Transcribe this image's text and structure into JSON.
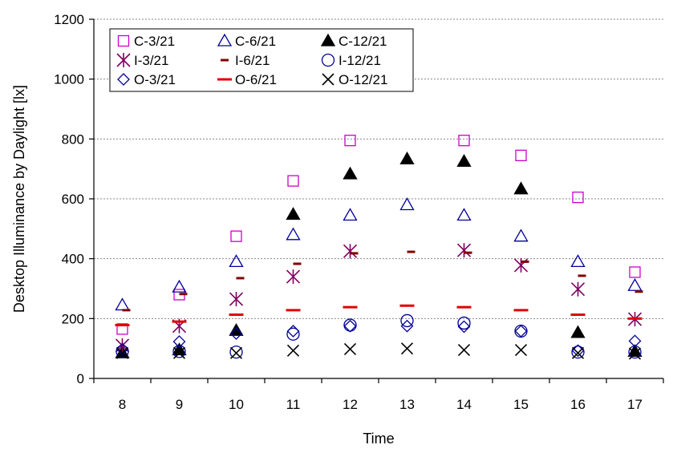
{
  "chart_data": {
    "type": "scatter",
    "xlabel": "Time",
    "ylabel": "Desktop Illuminance by Daylight [lx]",
    "x": [
      8,
      9,
      10,
      11,
      12,
      13,
      14,
      15,
      16,
      17
    ],
    "ylim": [
      0,
      1200
    ],
    "yticks": [
      0,
      200,
      400,
      600,
      800,
      1000,
      1200
    ],
    "grid": "horizontal dotted",
    "legend": "top-left, 3 columns",
    "series": [
      {
        "name": "C-3/21",
        "marker": "square-open",
        "color": "#cc00cc",
        "values": [
          165,
          280,
          475,
          660,
          795,
          null,
          795,
          745,
          605,
          355
        ]
      },
      {
        "name": "C-6/21",
        "marker": "triangle-open",
        "color": "#000099",
        "values": [
          245,
          305,
          390,
          480,
          545,
          580,
          545,
          475,
          390,
          310
        ]
      },
      {
        "name": "C-12/21",
        "marker": "triangle-filled",
        "color": "#000000",
        "values": [
          85,
          95,
          160,
          548,
          683,
          733,
          725,
          633,
          153,
          90
        ]
      },
      {
        "name": "I-3/21",
        "marker": "asterisk",
        "color": "#800060",
        "values": [
          110,
          175,
          265,
          340,
          425,
          null,
          428,
          378,
          298,
          198
        ]
      },
      {
        "name": "I-6/21",
        "marker": "dash",
        "color": "#800000",
        "values": [
          228,
          282,
          335,
          383,
          418,
          423,
          420,
          390,
          343,
          290
        ]
      },
      {
        "name": "I-12/21",
        "marker": "circle-open",
        "color": "#000099",
        "values": [
          90,
          90,
          88,
          148,
          178,
          193,
          185,
          158,
          88,
          88
        ]
      },
      {
        "name": "O-3/21",
        "marker": "diamond-open",
        "color": "#000099",
        "values": [
          98,
          123,
          150,
          158,
          175,
          175,
          173,
          158,
          93,
          125
        ]
      },
      {
        "name": "O-6/21",
        "marker": "dash-wide",
        "color": "#e00000",
        "values": [
          178,
          190,
          213,
          228,
          238,
          243,
          238,
          228,
          213,
          200
        ]
      },
      {
        "name": "O-12/21",
        "marker": "x",
        "color": "#000000",
        "values": [
          85,
          85,
          85,
          93,
          98,
          100,
          95,
          95,
          85,
          83
        ]
      }
    ]
  }
}
